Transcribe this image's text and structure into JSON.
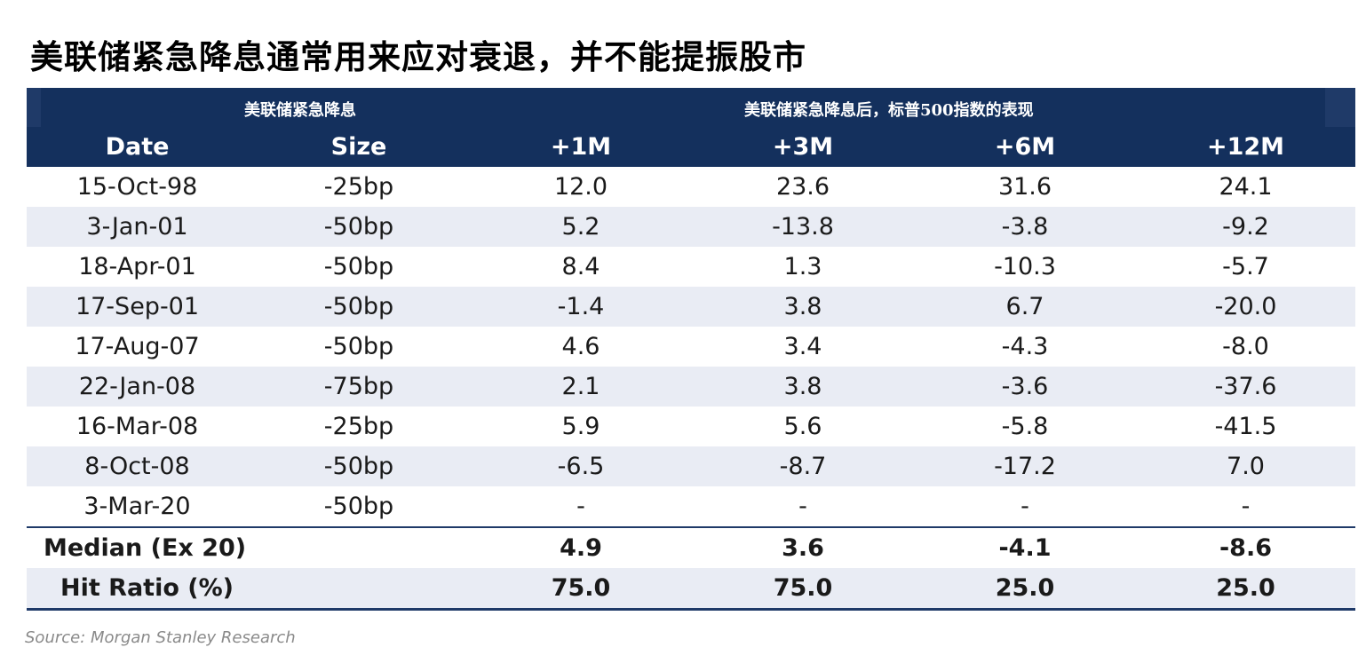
{
  "title": "美联储紧急降息通常用来应对衰退，并不能提振股市",
  "header_groups": {
    "left": "美联储紧急降息",
    "right": "美联储紧急降息后，标普500指数的表现"
  },
  "columns": [
    "Date",
    "Size",
    "+1M",
    "+3M",
    "+6M",
    "+12M"
  ],
  "rows": [
    [
      "15-Oct-98",
      "-25bp",
      "12.0",
      "23.6",
      "31.6",
      "24.1"
    ],
    [
      "3-Jan-01",
      "-50bp",
      "5.2",
      "-13.8",
      "-3.8",
      "-9.2"
    ],
    [
      "18-Apr-01",
      "-50bp",
      "8.4",
      "1.3",
      "-10.3",
      "-5.7"
    ],
    [
      "17-Sep-01",
      "-50bp",
      "-1.4",
      "3.8",
      "6.7",
      "-20.0"
    ],
    [
      "17-Aug-07",
      "-50bp",
      "4.6",
      "3.4",
      "-4.3",
      "-8.0"
    ],
    [
      "22-Jan-08",
      "-75bp",
      "2.1",
      "3.8",
      "-3.6",
      "-37.6"
    ],
    [
      "16-Mar-08",
      "-25bp",
      "5.9",
      "5.6",
      "-5.8",
      "-41.5"
    ],
    [
      "8-Oct-08",
      "-50bp",
      "-6.5",
      "-8.7",
      "-17.2",
      "7.0"
    ],
    [
      "3-Mar-20",
      "-50bp",
      "-",
      "-",
      "-",
      "-"
    ]
  ],
  "summary": [
    [
      "Median (Ex 20)",
      "",
      "4.9",
      "3.6",
      "-4.1",
      "-8.6"
    ],
    [
      "Hit Ratio (%)",
      "",
      "75.0",
      "75.0",
      "25.0",
      "25.0"
    ]
  ],
  "source": "Source: Morgan Stanley Research",
  "colors": {
    "header_bg": "#14305d",
    "row_shade": "#e9ecf4",
    "rule": "#1f3a68"
  }
}
